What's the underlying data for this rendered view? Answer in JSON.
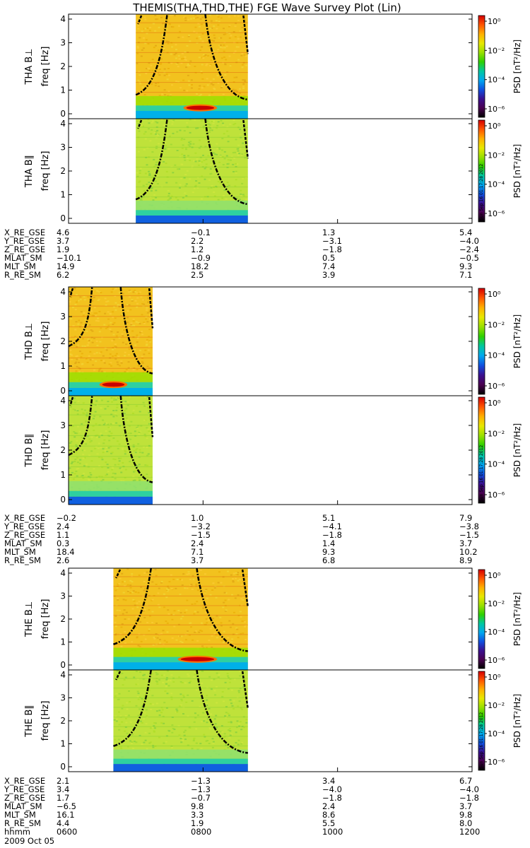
{
  "title": "THEMIS(THA,THD,THE) FGE Wave Survey Plot (Lin)",
  "stamp": "Sun Sep 16 01:17:28 2012",
  "colorbar": {
    "label": "PSD [nT²/Hz]",
    "ticks": [
      "10⁰",
      "10⁻²",
      "10⁻⁴",
      "10⁻⁶"
    ],
    "colors": [
      "#d40000",
      "#ff5500",
      "#ffb000",
      "#e8e800",
      "#9ae000",
      "#2ed000",
      "#00c8a0",
      "#00a8f0",
      "#1050e0",
      "#3a1090",
      "#4a0050",
      "#000000"
    ]
  },
  "chart_data": [
    {
      "type": "heatmap",
      "probe": "THA",
      "panel": "B⊥",
      "ylabel": "freq [Hz]",
      "yticks": [
        "0",
        "1",
        "2",
        "3",
        "4"
      ],
      "ylim": [
        0,
        4
      ],
      "xlim": [
        "0600",
        "1200"
      ],
      "data_range": [
        "0700",
        "0840"
      ],
      "strong_band": {
        "from": "0745",
        "to": "0810",
        "freq_hz": 0.25
      },
      "curve_low_hz": 0.8,
      "curve_high_hz": 0.6
    },
    {
      "type": "heatmap",
      "probe": "THA",
      "panel": "B∥",
      "ylabel": "freq [Hz]",
      "yticks": [
        "0",
        "1",
        "2",
        "3",
        "4"
      ],
      "ylim": [
        0,
        4
      ],
      "xlim": [
        "0600",
        "1200"
      ],
      "data_range": [
        "0700",
        "0840"
      ],
      "strong_band": null
    },
    {
      "type": "heatmap",
      "probe": "THD",
      "panel": "B⊥",
      "ylabel": "freq [Hz]",
      "yticks": [
        "0",
        "1",
        "2",
        "3",
        "4"
      ],
      "ylim": [
        0,
        4
      ],
      "xlim": [
        "0600",
        "1200"
      ],
      "data_range": [
        "0600",
        "0715"
      ],
      "strong_band": {
        "from": "0630",
        "to": "0650",
        "freq_hz": 0.25
      },
      "curve_low_hz": 1.8,
      "curve_high_hz": 0.7
    },
    {
      "type": "heatmap",
      "probe": "THD",
      "panel": "B∥",
      "ylabel": "freq [Hz]",
      "yticks": [
        "0",
        "1",
        "2",
        "3",
        "4"
      ],
      "ylim": [
        0,
        4
      ],
      "xlim": [
        "0600",
        "1200"
      ],
      "data_range": [
        "0600",
        "0715"
      ],
      "strong_band": null
    },
    {
      "type": "heatmap",
      "probe": "THE",
      "panel": "B⊥",
      "ylabel": "freq [Hz]",
      "yticks": [
        "0",
        "1",
        "2",
        "3",
        "4"
      ],
      "ylim": [
        0,
        4
      ],
      "xlim": [
        "0600",
        "1200"
      ],
      "data_range": [
        "0640",
        "0840"
      ],
      "strong_band": {
        "from": "0740",
        "to": "0810",
        "freq_hz": 0.25
      },
      "curve_low_hz": 0.9,
      "curve_high_hz": 0.6
    },
    {
      "type": "heatmap",
      "probe": "THE",
      "panel": "B∥",
      "ylabel": "freq [Hz]",
      "yticks": [
        "0",
        "1",
        "2",
        "3",
        "4"
      ],
      "ylim": [
        0,
        4
      ],
      "xlim": [
        "0600",
        "1200"
      ],
      "data_range": [
        "0640",
        "0840"
      ],
      "strong_band": null
    }
  ],
  "ephemeris": [
    {
      "probe": "THA",
      "rows": [
        {
          "label": "X_RE_GSE",
          "values": [
            "4.6",
            "−0.1",
            "1.3",
            "5.4"
          ]
        },
        {
          "label": "Y_RE_GSE",
          "values": [
            "3.7",
            "2.2",
            "−3.1",
            "−4.0"
          ]
        },
        {
          "label": "Z_RE_GSE",
          "values": [
            "1.9",
            "1.2",
            "−1.8",
            "−2.4"
          ]
        },
        {
          "label": "MLAT_SM",
          "values": [
            "−10.1",
            "−0.9",
            "0.5",
            "−0.5"
          ]
        },
        {
          "label": "MLT_SM",
          "values": [
            "14.9",
            "18.2",
            "7.4",
            "9.3"
          ]
        },
        {
          "label": "R_RE_SM",
          "values": [
            "6.2",
            "2.5",
            "3.9",
            "7.1"
          ]
        }
      ]
    },
    {
      "probe": "THD",
      "rows": [
        {
          "label": "X_RE_GSE",
          "values": [
            "−0.2",
            "1.0",
            "5.1",
            "7.9"
          ]
        },
        {
          "label": "Y_RE_GSE",
          "values": [
            "2.4",
            "−3.2",
            "−4.1",
            "−3.8"
          ]
        },
        {
          "label": "Z_RE_GSE",
          "values": [
            "1.1",
            "−1.5",
            "−1.8",
            "−1.5"
          ]
        },
        {
          "label": "MLAT_SM",
          "values": [
            "0.3",
            "2.4",
            "1.4",
            "3.7"
          ]
        },
        {
          "label": "MLT_SM",
          "values": [
            "18.4",
            "7.1",
            "9.3",
            "10.2"
          ]
        },
        {
          "label": "R_RE_SM",
          "values": [
            "2.6",
            "3.7",
            "6.8",
            "8.9"
          ]
        }
      ]
    },
    {
      "probe": "THE",
      "rows": [
        {
          "label": "X_RE_GSE",
          "values": [
            "2.1",
            "−1.3",
            "3.4",
            "6.7"
          ]
        },
        {
          "label": "Y_RE_GSE",
          "values": [
            "3.4",
            "−1.3",
            "−4.0",
            "−4.0"
          ]
        },
        {
          "label": "Z_RE_GSE",
          "values": [
            "1.7",
            "−0.7",
            "−1.8",
            "−1.8"
          ]
        },
        {
          "label": "MLAT_SM",
          "values": [
            "−6.5",
            "9.8",
            "2.4",
            "3.7"
          ]
        },
        {
          "label": "MLT_SM",
          "values": [
            "16.1",
            "3.3",
            "8.6",
            "9.8"
          ]
        },
        {
          "label": "R_RE_SM",
          "values": [
            "4.4",
            "1.9",
            "5.5",
            "8.0"
          ]
        },
        {
          "label": "hhmm",
          "values": [
            "0600",
            "0800",
            "1000",
            "1200"
          ]
        }
      ]
    }
  ],
  "date": "2009 Oct 05"
}
